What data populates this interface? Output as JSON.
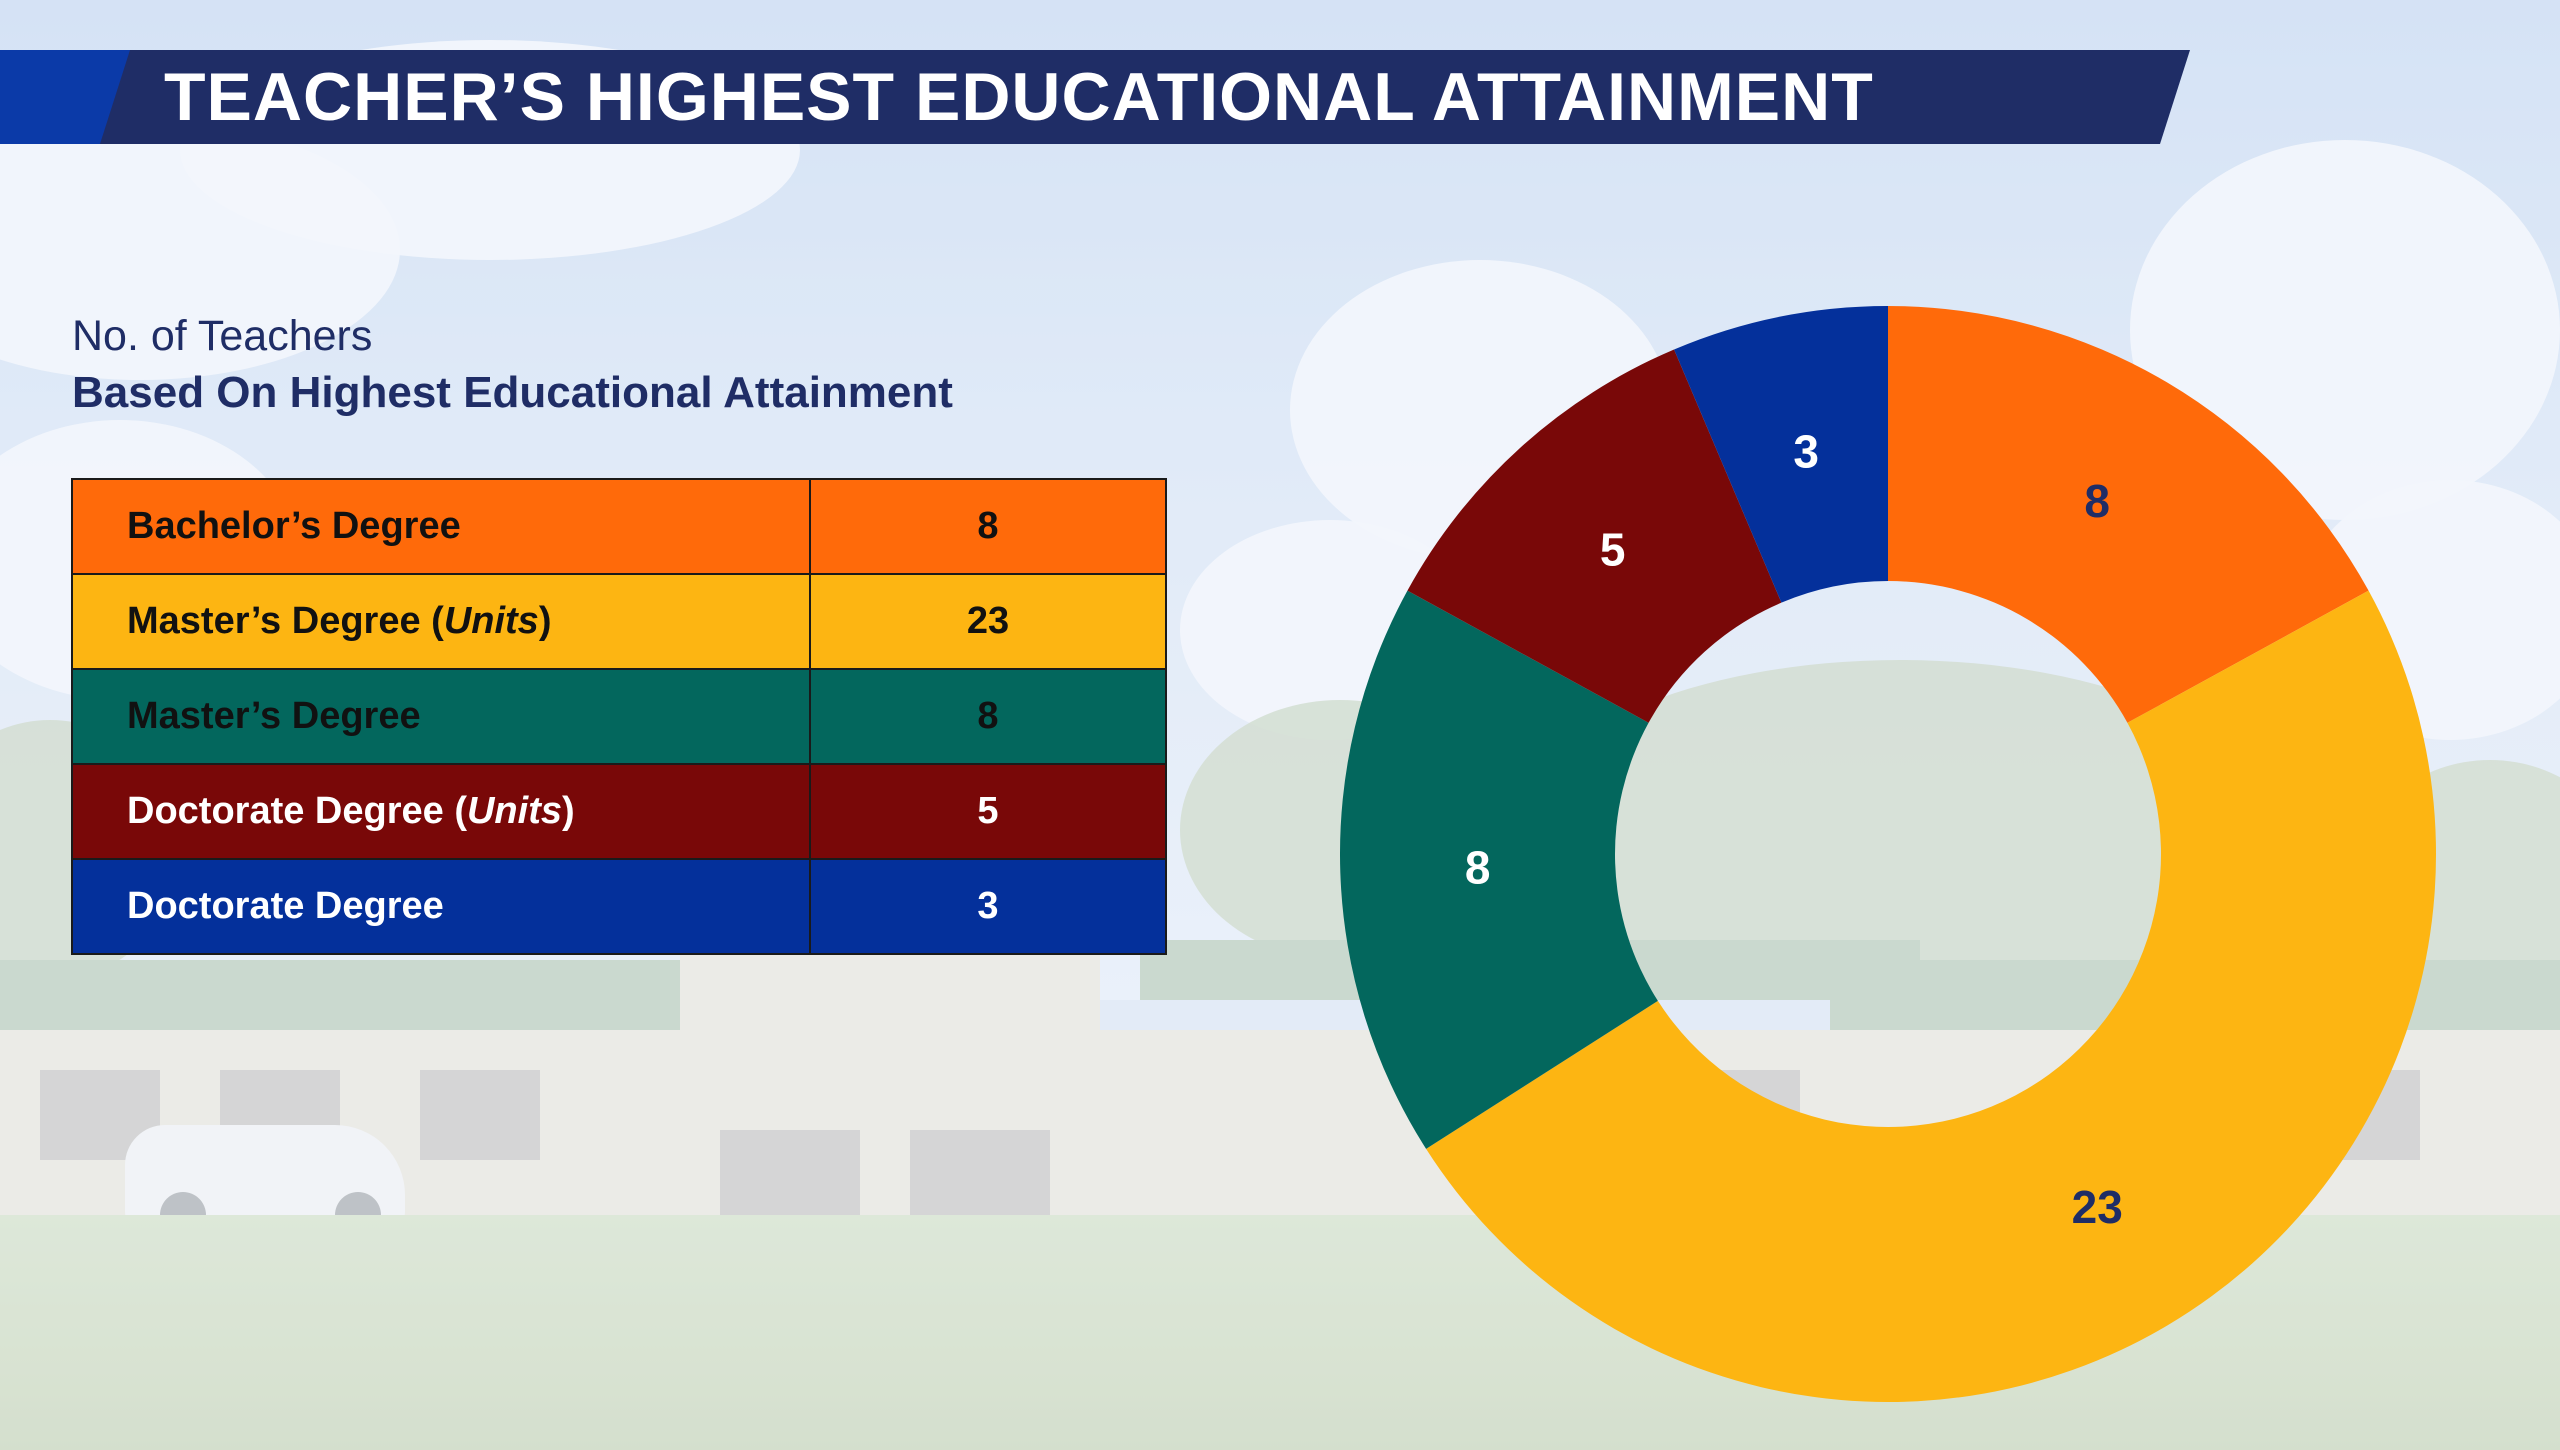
{
  "title": "TEACHER’S HIGHEST EDUCATIONAL ATTAINMENT",
  "subtitle_line1": "No. of Teachers",
  "subtitle_line2": "Based On Highest Educational Attainment",
  "table": {
    "rows": [
      {
        "label": "Bachelor’s Degree",
        "label_pre": "Bachelor’s Degree",
        "label_it": "",
        "label_post": "",
        "value": "8",
        "color": "#ff6a0a",
        "text_color": "#111111"
      },
      {
        "label": "Master’s Degree (Units)",
        "label_pre": "Master’s Degree (",
        "label_it": "Units",
        "label_post": ")",
        "value": "23",
        "color": "#fdb512",
        "text_color": "#111111"
      },
      {
        "label": "Master’s Degree",
        "label_pre": "Master’s Degree",
        "label_it": "",
        "label_post": "",
        "value": "8",
        "color": "#03675d",
        "text_color": "#111111"
      },
      {
        "label": "Doctorate Degree (Units)",
        "label_pre": "Doctorate Degree (",
        "label_it": "Units",
        "label_post": ")",
        "value": "5",
        "color": "#790808",
        "text_color": "#ffffff"
      },
      {
        "label": "Doctorate Degree",
        "label_pre": "Doctorate Degree",
        "label_it": "",
        "label_post": "",
        "value": "3",
        "color": "#04309b",
        "text_color": "#ffffff"
      }
    ]
  },
  "chart_data": {
    "type": "pie",
    "donut": true,
    "start_angle": "12 o'clock",
    "direction": "clockwise",
    "categories": [
      "Bachelor’s Degree",
      "Master’s Degree (Units)",
      "Master’s Degree",
      "Doctorate Degree (Units)",
      "Doctorate Degree"
    ],
    "values": [
      8,
      23,
      8,
      5,
      3
    ],
    "data_labels": [
      "8",
      "23",
      "8",
      "5",
      "3"
    ],
    "colors": [
      "#ff6a0a",
      "#fdb512",
      "#03675d",
      "#790808",
      "#04309b"
    ],
    "label_colors": [
      "#1f2d66",
      "#1f2d66",
      "#ffffff",
      "#ffffff",
      "#ffffff"
    ],
    "title": "",
    "legend": "none"
  },
  "colors": {
    "banner": "#1f2d66",
    "banner_accent": "#0b3aa8",
    "subtitle": "#1f2d66"
  }
}
